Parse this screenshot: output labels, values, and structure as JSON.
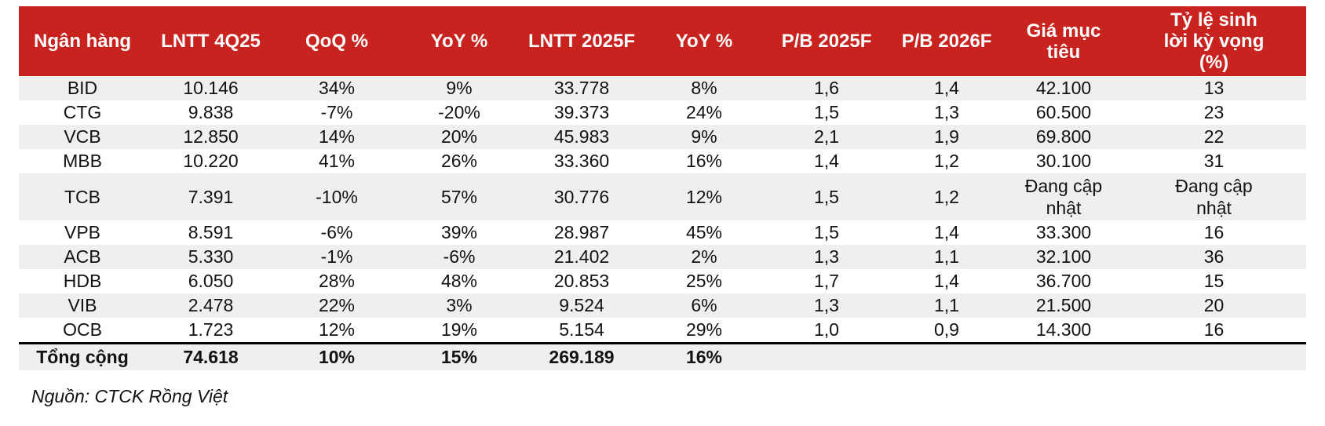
{
  "table": {
    "columns": [
      "Ngân hàng",
      "LNTT 4Q25",
      "QoQ %",
      "YoY %",
      "LNTT 2025F",
      "YoY %",
      "P/B 2025F",
      "P/B 2026F",
      "Giá mục tiêu",
      "Tỷ lệ sinh lời kỳ vọng (%)"
    ],
    "rows": [
      {
        "bank": "BID",
        "values": [
          "10.146",
          "34%",
          "9%",
          "33.778",
          "8%",
          "1,6",
          "1,4",
          "42.100",
          "13"
        ]
      },
      {
        "bank": "CTG",
        "values": [
          "9.838",
          "-7%",
          "-20%",
          "39.373",
          "24%",
          "1,5",
          "1,3",
          "60.500",
          "23"
        ]
      },
      {
        "bank": "VCB",
        "values": [
          "12.850",
          "14%",
          "20%",
          "45.983",
          "9%",
          "2,1",
          "1,9",
          "69.800",
          "22"
        ]
      },
      {
        "bank": "MBB",
        "values": [
          "10.220",
          "41%",
          "26%",
          "33.360",
          "16%",
          "1,4",
          "1,2",
          "30.100",
          "31"
        ]
      },
      {
        "bank": "TCB",
        "values": [
          "7.391",
          "-10%",
          "57%",
          "30.776",
          "12%",
          "1,5",
          "1,2",
          "Đang cập nhật",
          "Đang cập nhật"
        ]
      },
      {
        "bank": "VPB",
        "values": [
          "8.591",
          "-6%",
          "39%",
          "28.987",
          "45%",
          "1,5",
          "1,4",
          "33.300",
          "16"
        ]
      },
      {
        "bank": "ACB",
        "values": [
          "5.330",
          "-1%",
          "-6%",
          "21.402",
          "2%",
          "1,3",
          "1,1",
          "32.100",
          "36"
        ]
      },
      {
        "bank": "HDB",
        "values": [
          "6.050",
          "28%",
          "48%",
          "20.853",
          "25%",
          "1,7",
          "1,4",
          "36.700",
          "15"
        ]
      },
      {
        "bank": "VIB",
        "values": [
          "2.478",
          "22%",
          "3%",
          "9.524",
          "6%",
          "1,3",
          "1,1",
          "21.500",
          "20"
        ]
      },
      {
        "bank": "OCB",
        "values": [
          "1.723",
          "12%",
          "19%",
          "5.154",
          "29%",
          "1,0",
          "0,9",
          "14.300",
          "16"
        ]
      }
    ],
    "total_row": {
      "label": "Tổng cộng",
      "values": [
        "74.618",
        "10%",
        "15%",
        "269.189",
        "16%",
        "",
        "",
        "",
        ""
      ]
    }
  },
  "footer": {
    "source": "Nguồn: CTCK Rồng Việt"
  },
  "colors": {
    "header_bg": "#C8231F",
    "header_text": "#FFFFFF",
    "stripe_bg": "#EFEFEF",
    "body_text": "#121212"
  }
}
